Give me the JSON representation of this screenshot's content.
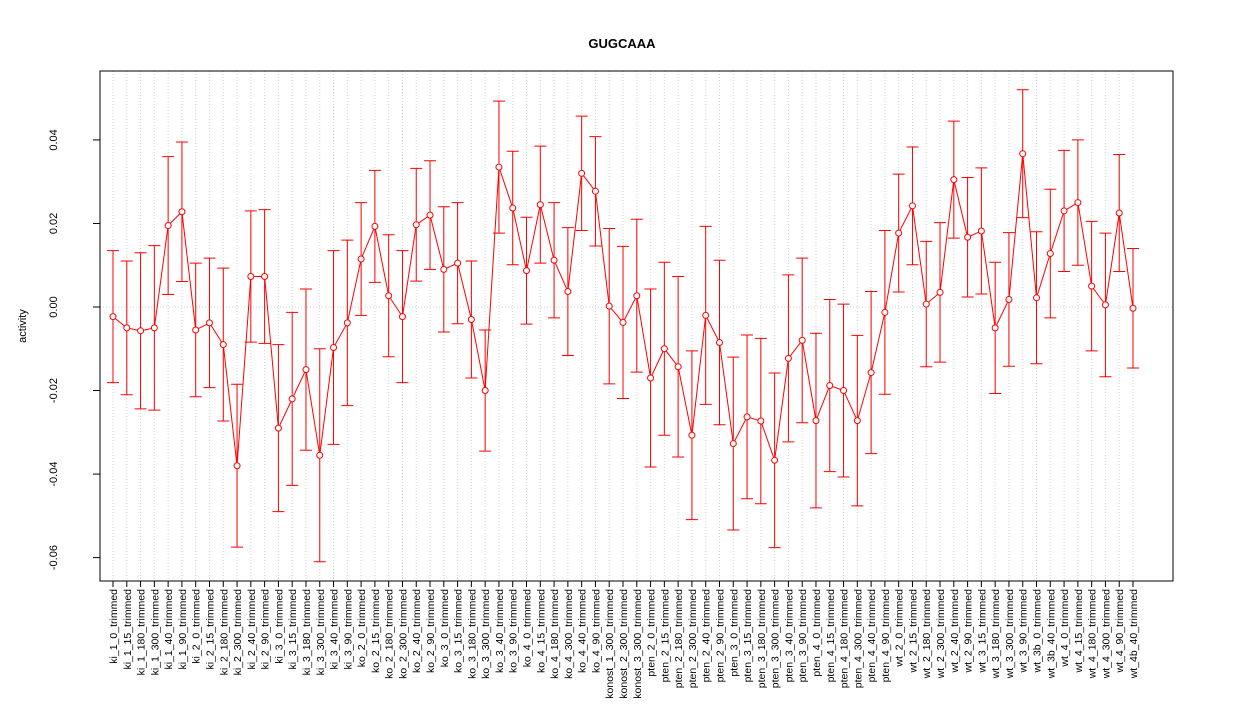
{
  "chart_data": {
    "type": "errorbar-line",
    "title": "GUGCAAA",
    "ylabel": "activity",
    "color": "#ff0000",
    "grid": true,
    "reference_line": 0,
    "categories": [
      "ki_1_0_trimmed",
      "ki_1_15_trimmed",
      "ki_1_180_trimmed",
      "ki_1_300_trimmed",
      "ki_1_40_trimmed",
      "ki_1_90_trimmed",
      "ki_2_0_trimmed",
      "ki_2_15_trimmed",
      "ki_2_180_trimmed",
      "ki_2_300_trimmed",
      "ki_2_40_trimmed",
      "ki_2_90_trimmed",
      "ki_3_0_trimmed",
      "ki_3_15_trimmed",
      "ki_3_180_trimmed",
      "ki_3_300_trimmed",
      "ki_3_40_trimmed",
      "ki_3_90_trimmed",
      "ko_2_0_trimmed",
      "ko_2_15_trimmed",
      "ko_2_180_trimmed",
      "ko_2_300_trimmed",
      "ko_2_40_trimmed",
      "ko_2_90_trimmed",
      "ko_3_0_trimmed",
      "ko_3_15_trimmed",
      "ko_3_180_trimmed",
      "ko_3_300_trimmed",
      "ko_3_40_trimmed",
      "ko_3_90_trimmed",
      "ko_4_0_trimmed",
      "ko_4_15_trimmed",
      "ko_4_180_trimmed",
      "ko_4_300_trimmed",
      "ko_4_40_trimmed",
      "ko_4_90_trimmed",
      "konost_1_300_trimmed",
      "konost_2_300_trimmed",
      "konost_3_300_trimmed",
      "pten_2_0_trimmed",
      "pten_2_15_trimmed",
      "pten_2_180_trimmed",
      "pten_2_300_trimmed",
      "pten_2_40_trimmed",
      "pten_2_90_trimmed",
      "pten_3_0_trimmed",
      "pten_3_15_trimmed",
      "pten_3_180_trimmed",
      "pten_3_300_trimmed",
      "pten_3_40_trimmed",
      "pten_3_90_trimmed",
      "pten_4_0_trimmed",
      "pten_4_15_trimmed",
      "pten_4_180_trimmed",
      "pten_4_300_trimmed",
      "pten_4_40_trimmed",
      "pten_4_90_trimmed",
      "wt_2_0_trimmed",
      "wt_2_15_trimmed",
      "wt_2_180_trimmed",
      "wt_2_300_trimmed",
      "wt_2_40_trimmed",
      "wt_2_90_trimmed",
      "wt_3_15_trimmed",
      "wt_3_180_trimmed",
      "wt_3_300_trimmed",
      "wt_3_90_trimmed",
      "wt_3b_0_trimmed",
      "wt_3b_40_trimmed",
      "wt_4_0_trimmed",
      "wt_4_15_trimmed",
      "wt_4_180_trimmed",
      "wt_4_300_trimmed",
      "wt_4_90_trimmed",
      "wt_4b_40_trimmed"
    ],
    "values": [
      -0.0023,
      -0.005,
      -0.0057,
      -0.005,
      0.0195,
      0.0228,
      -0.0055,
      -0.0038,
      -0.009,
      -0.038,
      0.0073,
      0.0073,
      -0.029,
      -0.022,
      -0.015,
      -0.0355,
      -0.0097,
      -0.0038,
      0.0115,
      0.0193,
      0.0027,
      -0.0023,
      0.0197,
      0.022,
      0.009,
      0.0105,
      -0.003,
      -0.02,
      0.0335,
      0.0237,
      0.0087,
      0.0245,
      0.0112,
      0.0037,
      0.032,
      0.0277,
      0.0002,
      -0.0037,
      0.0027,
      -0.017,
      -0.01,
      -0.0143,
      -0.0307,
      -0.002,
      -0.0085,
      -0.0327,
      -0.0263,
      -0.0273,
      -0.0367,
      -0.0123,
      -0.008,
      -0.0272,
      -0.0188,
      -0.02,
      -0.0272,
      -0.0157,
      -0.0013,
      0.0177,
      0.0242,
      0.0007,
      0.0035,
      0.0305,
      0.0167,
      0.0182,
      -0.005,
      0.0018,
      0.0367,
      0.0022,
      0.0128,
      0.023,
      0.025,
      0.005,
      0.0005,
      0.0225,
      -0.0003
    ],
    "errors": [
      0.0158,
      0.016,
      0.0187,
      0.0197,
      0.0165,
      0.0167,
      0.016,
      0.0155,
      0.0183,
      0.0195,
      0.0157,
      0.016,
      0.02,
      0.0207,
      0.0193,
      0.0255,
      0.0232,
      0.0198,
      0.0135,
      0.0134,
      0.0146,
      0.0158,
      0.0135,
      0.013,
      0.015,
      0.0145,
      0.014,
      0.0145,
      0.0158,
      0.0136,
      0.0128,
      0.014,
      0.0138,
      0.0153,
      0.0137,
      0.0131,
      0.0186,
      0.0182,
      0.0183,
      0.0213,
      0.0207,
      0.0216,
      0.0202,
      0.0213,
      0.0197,
      0.0207,
      0.0196,
      0.0198,
      0.0209,
      0.02,
      0.0197,
      0.0209,
      0.0206,
      0.0207,
      0.0204,
      0.0194,
      0.0196,
      0.0141,
      0.0141,
      0.015,
      0.0167,
      0.014,
      0.0143,
      0.0151,
      0.0157,
      0.016,
      0.0153,
      0.0158,
      0.0154,
      0.0145,
      0.015,
      0.0155,
      0.0172,
      0.014,
      0.0143
    ],
    "ylim": [
      -0.0656,
      0.0565
    ],
    "yticks": [
      -0.06,
      -0.04,
      -0.02,
      {
        "value": 0,
        "label": "0.00"
      },
      0.02,
      0.04
    ]
  }
}
